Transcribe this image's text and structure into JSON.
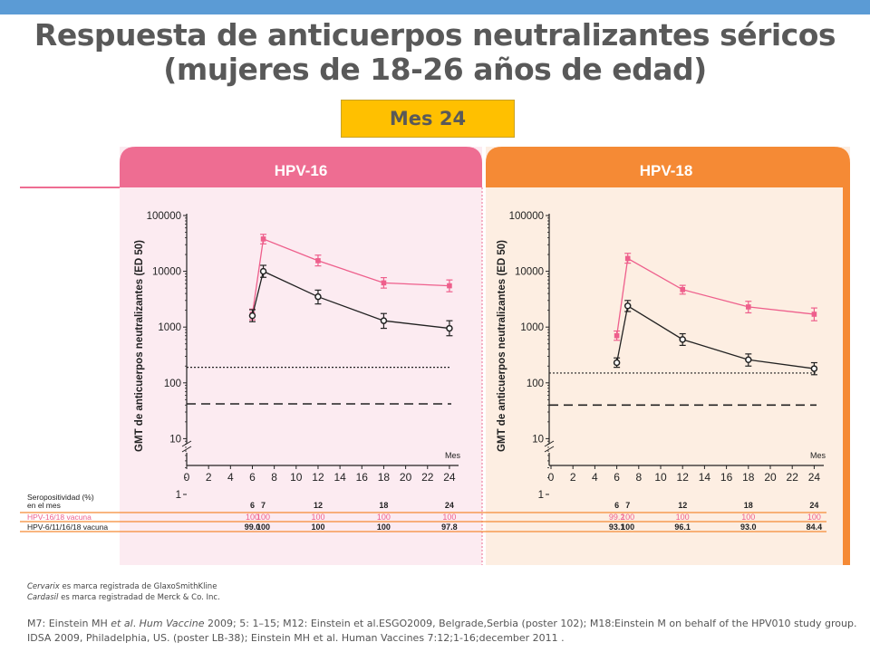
{
  "header": {
    "title_line1": "Respuesta de anticuerpos neutralizantes séricos",
    "title_line2": "(mujeres de 18-26 años de edad)",
    "month_label": "Mes 24"
  },
  "colors": {
    "top_bar": "#5b9bd5",
    "month_box": "#ffc000",
    "hpv16_header": "#ee6d92",
    "hpv16_panel": "#fcebf1",
    "hpv18_header": "#f58a35",
    "hpv18_panel": "#fdeee2",
    "vaccine_bivalent": "#ee5f8c",
    "vaccine_quadrivalent": "#222222"
  },
  "chart_data": [
    {
      "type": "line",
      "panel_title": "HPV-16",
      "ylabel": "GMT de anticuerpos neutralizantes (ED 50)",
      "xlabel": "Mes",
      "yscale": "log",
      "ylim": [
        1,
        100000
      ],
      "yticks": [
        1,
        10,
        100,
        1000,
        10000,
        100000
      ],
      "ytick_labels": [
        "1",
        "10",
        "100",
        "1000",
        "10000",
        "100000"
      ],
      "xlim": [
        0,
        24
      ],
      "xticks": [
        0,
        2,
        4,
        6,
        8,
        10,
        12,
        14,
        16,
        18,
        20,
        22,
        24
      ],
      "xtick_labels": [
        "0",
        "2",
        "4",
        "6",
        "8",
        "10",
        "12",
        "14",
        "16",
        "18",
        "20",
        "22",
        "24"
      ],
      "reference_lines": [
        {
          "y": 190,
          "style": "dotted"
        },
        {
          "y": 42,
          "style": "dashed"
        }
      ],
      "series": [
        {
          "color": "#ee5f8c",
          "marker": "square",
          "x": [
            6,
            7,
            12,
            18,
            24
          ],
          "y": [
            1700,
            38000,
            15500,
            6200,
            5500
          ],
          "err_low": [
            1350,
            31000,
            12500,
            5000,
            4300
          ],
          "err_high": [
            2100,
            46000,
            19500,
            7700,
            7000
          ]
        },
        {
          "color": "#222222",
          "marker": "circle",
          "x": [
            6,
            7,
            12,
            18,
            24
          ],
          "y": [
            1600,
            10000,
            3500,
            1300,
            950
          ],
          "err_low": [
            1250,
            7800,
            2600,
            950,
            700
          ],
          "err_high": [
            2050,
            12800,
            4600,
            1750,
            1300
          ]
        }
      ],
      "table": {
        "header": "Seropositividad (%)",
        "subheader": "en el mes",
        "months": [
          "6",
          "7",
          "12",
          "18",
          "24"
        ],
        "rows": [
          {
            "label": "HPV-16/18 vacuna",
            "values": [
              "100",
              "100",
              "100",
              "100",
              "100"
            ],
            "color": "#ee5f8c"
          },
          {
            "label": "HPV-6/11/16/18 vacuna",
            "values": [
              "99.0",
              "100",
              "100",
              "100",
              "97.8"
            ],
            "color": "#222222"
          }
        ]
      }
    },
    {
      "type": "line",
      "panel_title": "HPV-18",
      "ylabel": "GMT de anticuerpos neutralizantes (ED 50)",
      "xlabel": "Mes",
      "yscale": "log",
      "ylim": [
        1,
        100000
      ],
      "yticks": [
        1,
        10,
        100,
        1000,
        10000,
        100000
      ],
      "ytick_labels": [
        "1",
        "10",
        "100",
        "1000",
        "10000",
        "100000"
      ],
      "xlim": [
        0,
        24
      ],
      "xticks": [
        0,
        2,
        4,
        6,
        8,
        10,
        12,
        14,
        16,
        18,
        20,
        22,
        24
      ],
      "xtick_labels": [
        "0",
        "2",
        "4",
        "6",
        "8",
        "10",
        "12",
        "14",
        "16",
        "18",
        "20",
        "22",
        "24"
      ],
      "reference_lines": [
        {
          "y": 150,
          "style": "dotted"
        },
        {
          "y": 40,
          "style": "dashed"
        }
      ],
      "series": [
        {
          "color": "#ee5f8c",
          "marker": "square",
          "x": [
            6,
            7,
            12,
            18,
            24
          ],
          "y": [
            700,
            17000,
            4700,
            2300,
            1700
          ],
          "err_low": [
            580,
            14000,
            3900,
            1800,
            1300
          ],
          "err_high": [
            850,
            21000,
            5600,
            2900,
            2200
          ]
        },
        {
          "color": "#222222",
          "marker": "circle",
          "x": [
            6,
            7,
            12,
            18,
            24
          ],
          "y": [
            230,
            2400,
            600,
            260,
            180
          ],
          "err_low": [
            190,
            1900,
            470,
            200,
            140
          ],
          "err_high": [
            280,
            3000,
            760,
            330,
            230
          ]
        }
      ],
      "table": {
        "months": [
          "6",
          "7",
          "12",
          "18",
          "24"
        ],
        "rows": [
          {
            "values": [
              "99.2",
              "100",
              "100",
              "100",
              "100"
            ],
            "color": "#ee5f8c"
          },
          {
            "values": [
              "93.1",
              "100",
              "96.1",
              "93.0",
              "84.4"
            ],
            "color": "#222222"
          }
        ]
      }
    }
  ],
  "footer": {
    "brand1_name": "Cervarix",
    "brand1_text": " es marca registrada de GlaxoSmithKline",
    "brand2_name": "Cardasil",
    "brand2_text": " es marca registradad de Merck & Co. Inc.",
    "ref_part1": "M7: Einstein MH ",
    "ref_et_al": "et al",
    "ref_part2": ". ",
    "ref_journal": "Hum Vaccine",
    "ref_part3": " 2009; 5: 1–15; M12: Einstein et al.ESGO2009,  Belgrade,Serbia (poster 102); M18:Einstein M on behalf of the HPV010 study group. IDSA 2009, Philadelphia, US. (poster LB-38); Einstein MH et al. Human Vaccines 7:12;1-16;december 2011 ."
  }
}
